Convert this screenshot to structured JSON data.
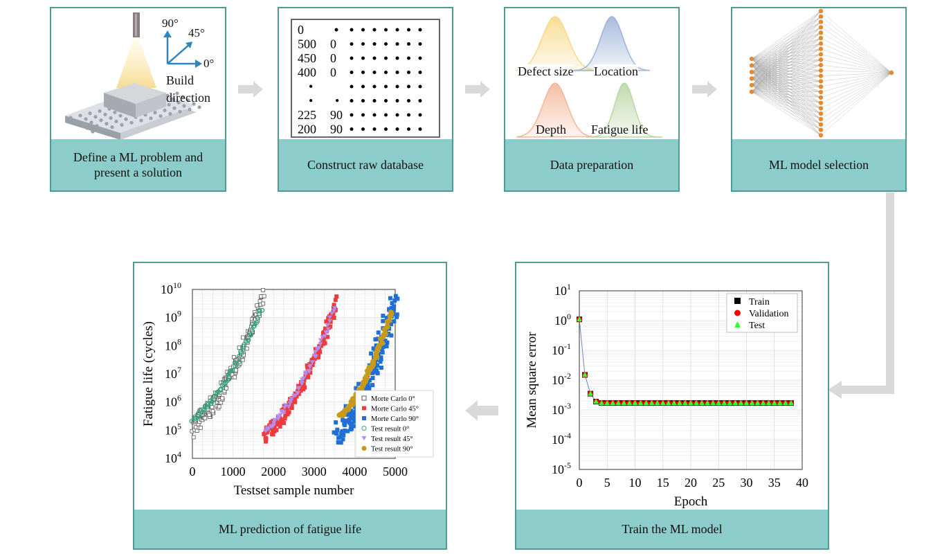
{
  "panels": {
    "define": {
      "caption": "Define a ML problem and present a solution",
      "angle_90": "90°",
      "angle_45": "45°",
      "angle_0": "0°",
      "build_direction": "Build direction"
    },
    "database": {
      "caption": "Construct raw database",
      "rows": [
        {
          "a": "0",
          "b": ""
        },
        {
          "a": "500",
          "b": "0"
        },
        {
          "a": "450",
          "b": "0"
        },
        {
          "a": "400",
          "b": "0"
        },
        {
          "a": "•",
          "b": ""
        },
        {
          "a": "•",
          "b": "•"
        },
        {
          "a": "225",
          "b": "90"
        },
        {
          "a": "200",
          "b": "90"
        }
      ]
    },
    "prep": {
      "caption": "Data preparation",
      "dists": [
        {
          "label": "Defect size",
          "color": "#f7d98a"
        },
        {
          "label": "Location",
          "color": "#9fb4d9"
        },
        {
          "label": "Depth",
          "color": "#f3b79a"
        },
        {
          "label": "Fatigue life",
          "color": "#b9d7a6"
        }
      ]
    },
    "model": {
      "caption": "ML model selection",
      "node_color": "#e58a2c"
    },
    "train": {
      "caption": "Train the ML model",
      "chart_data": {
        "type": "line",
        "xlabel": "Epoch",
        "ylabel": "Mean square error",
        "xlim": [
          0,
          40
        ],
        "ylim_log10": [
          -5,
          1
        ],
        "xticks": [
          "0",
          "5",
          "10",
          "15",
          "20",
          "25",
          "30",
          "35",
          "40"
        ],
        "yticks": [
          {
            "base": "10",
            "exp": "1"
          },
          {
            "base": "10",
            "exp": "0"
          },
          {
            "base": "10",
            "exp": "-1"
          },
          {
            "base": "10",
            "exp": "-2"
          },
          {
            "base": "10",
            "exp": "-3"
          },
          {
            "base": "10",
            "exp": "-4"
          },
          {
            "base": "10",
            "exp": "-5"
          }
        ],
        "legend": [
          "Train",
          "Validation",
          "Test"
        ],
        "legend_position": "top-right",
        "series": [
          {
            "name": "Train",
            "color": "#000000",
            "marker": "square",
            "x": [
              0,
              1,
              2,
              3,
              4,
              5,
              6,
              7,
              8,
              9,
              10,
              11,
              12,
              13,
              14,
              15,
              16,
              17,
              18,
              19,
              20,
              21,
              22,
              23,
              24,
              25,
              26,
              27,
              28,
              29,
              30,
              31,
              32,
              33,
              34,
              35,
              36,
              37,
              38
            ],
            "y": [
              1.1,
              0.015,
              0.0035,
              0.0019,
              0.0017,
              0.0017,
              0.0017,
              0.0017,
              0.0017,
              0.0017,
              0.0017,
              0.0017,
              0.0017,
              0.0017,
              0.0017,
              0.0017,
              0.0017,
              0.0017,
              0.0017,
              0.0017,
              0.0017,
              0.0017,
              0.0017,
              0.0017,
              0.0017,
              0.0017,
              0.0017,
              0.0017,
              0.0017,
              0.0017,
              0.0017,
              0.0017,
              0.0017,
              0.0017,
              0.0017,
              0.0017,
              0.0017,
              0.0017,
              0.0017
            ]
          },
          {
            "name": "Validation",
            "color": "#ff0000",
            "marker": "circle",
            "x": [
              0,
              1,
              2,
              3,
              4,
              5,
              6,
              7,
              8,
              9,
              10,
              11,
              12,
              13,
              14,
              15,
              16,
              17,
              18,
              19,
              20,
              21,
              22,
              23,
              24,
              25,
              26,
              27,
              28,
              29,
              30,
              31,
              32,
              33,
              34,
              35,
              36,
              37,
              38
            ],
            "y": [
              1.1,
              0.015,
              0.0035,
              0.0019,
              0.0017,
              0.0017,
              0.0017,
              0.0017,
              0.0017,
              0.0017,
              0.0017,
              0.0017,
              0.0017,
              0.0017,
              0.0017,
              0.0017,
              0.0017,
              0.0017,
              0.0017,
              0.0017,
              0.0017,
              0.0017,
              0.0017,
              0.0017,
              0.0017,
              0.0017,
              0.0017,
              0.0017,
              0.0017,
              0.0017,
              0.0017,
              0.0017,
              0.0017,
              0.0017,
              0.0017,
              0.0017,
              0.0017,
              0.0017,
              0.0017
            ]
          },
          {
            "name": "Test",
            "color": "#33ff33",
            "marker": "triangle",
            "x": [
              0,
              1,
              2,
              3,
              4,
              5,
              6,
              7,
              8,
              9,
              10,
              11,
              12,
              13,
              14,
              15,
              16,
              17,
              18,
              19,
              20,
              21,
              22,
              23,
              24,
              25,
              26,
              27,
              28,
              29,
              30,
              31,
              32,
              33,
              34,
              35,
              36,
              37,
              38
            ],
            "y": [
              1.1,
              0.015,
              0.0035,
              0.0019,
              0.0017,
              0.0017,
              0.0017,
              0.0017,
              0.0017,
              0.0017,
              0.0017,
              0.0017,
              0.0017,
              0.0017,
              0.0017,
              0.0017,
              0.0017,
              0.0017,
              0.0017,
              0.0017,
              0.0017,
              0.0017,
              0.0017,
              0.0017,
              0.0017,
              0.0017,
              0.0017,
              0.0017,
              0.0017,
              0.0017,
              0.0017,
              0.0017,
              0.0017,
              0.0017,
              0.0017,
              0.0017,
              0.0017,
              0.0017,
              0.0017
            ]
          }
        ]
      }
    },
    "predict": {
      "caption": "ML prediction of fatigue life",
      "chart_data": {
        "type": "scatter",
        "xlabel": "Testset sample number",
        "ylabel": "Fatigue life (cycles)",
        "xlim": [
          0,
          5000
        ],
        "ylim_log10": [
          4,
          10
        ],
        "xticks": [
          "0",
          "1000",
          "2000",
          "3000",
          "4000",
          "5000"
        ],
        "yticks": [
          {
            "base": "10",
            "exp": "10"
          },
          {
            "base": "10",
            "exp": "9"
          },
          {
            "base": "10",
            "exp": "8"
          },
          {
            "base": "10",
            "exp": "7"
          },
          {
            "base": "10",
            "exp": "6"
          },
          {
            "base": "10",
            "exp": "5"
          },
          {
            "base": "10",
            "exp": "4"
          }
        ],
        "legend": [
          "Morte Carlo 0°",
          "Morte Carlo 45°",
          "Morte Carlo 90°",
          "Test result 0°",
          "Test result 45°",
          "Test result 90°"
        ],
        "legend_position": "bottom-right",
        "series": [
          {
            "name": "Morte Carlo 0°",
            "color": "#555555",
            "marker": "open-square",
            "x_range": [
              0,
              1750
            ],
            "log_range": [
              5.1,
              9.7
            ],
            "spread": 0.35
          },
          {
            "name": "Morte Carlo 45°",
            "color": "#ee3b3b",
            "marker": "square",
            "x_range": [
              1780,
              3550
            ],
            "log_range": [
              4.8,
              9.5
            ],
            "spread": 0.25
          },
          {
            "name": "Morte Carlo 90°",
            "color": "#1f6fd6",
            "marker": "square",
            "x_range": [
              3600,
              5000
            ],
            "log_range": [
              4.9,
              9.6
            ],
            "spread": 0.45
          },
          {
            "name": "Test result 0°",
            "color": "#3aa37a",
            "marker": "open-circle",
            "x_range": [
              0,
              1700
            ],
            "log_range": [
              5.4,
              9.3
            ],
            "spread": 0.08
          },
          {
            "name": "Test result 45°",
            "color": "#b58cf0",
            "marker": "triangle",
            "x_range": [
              1800,
              3500
            ],
            "log_range": [
              5.0,
              9.3
            ],
            "spread": 0.08
          },
          {
            "name": "Test result 90°",
            "color": "#c79a1c",
            "marker": "circle",
            "x_range": [
              3650,
              4900
            ],
            "log_range": [
              5.5,
              9.2
            ],
            "spread": 0.05
          }
        ]
      }
    }
  }
}
